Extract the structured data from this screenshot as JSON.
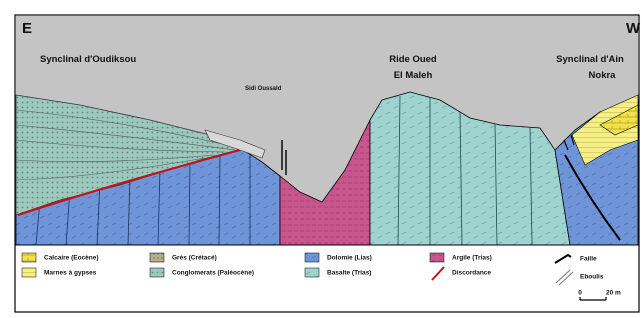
{
  "header": {
    "left": "E",
    "right": "W"
  },
  "labels": {
    "left": "Synclinal d'Oudiksou",
    "site": "Sidi Oussald",
    "center": [
      "Ride Oued",
      "El Maleh"
    ],
    "right": [
      "Synclinal d'Ain",
      "Nokra"
    ]
  },
  "legend": [
    "Calcaire (Eocène)",
    "Marnes à gypses",
    "Grès (Crétacé)",
    "Conglomerats (Paléocène)",
    "Dolomie (Lias)",
    "Basalte (Trias)",
    "Argile (Trias)",
    "Discordance",
    "Faille",
    "Eboulis"
  ],
  "scale": {
    "start": "0",
    "end": "20 m"
  }
}
